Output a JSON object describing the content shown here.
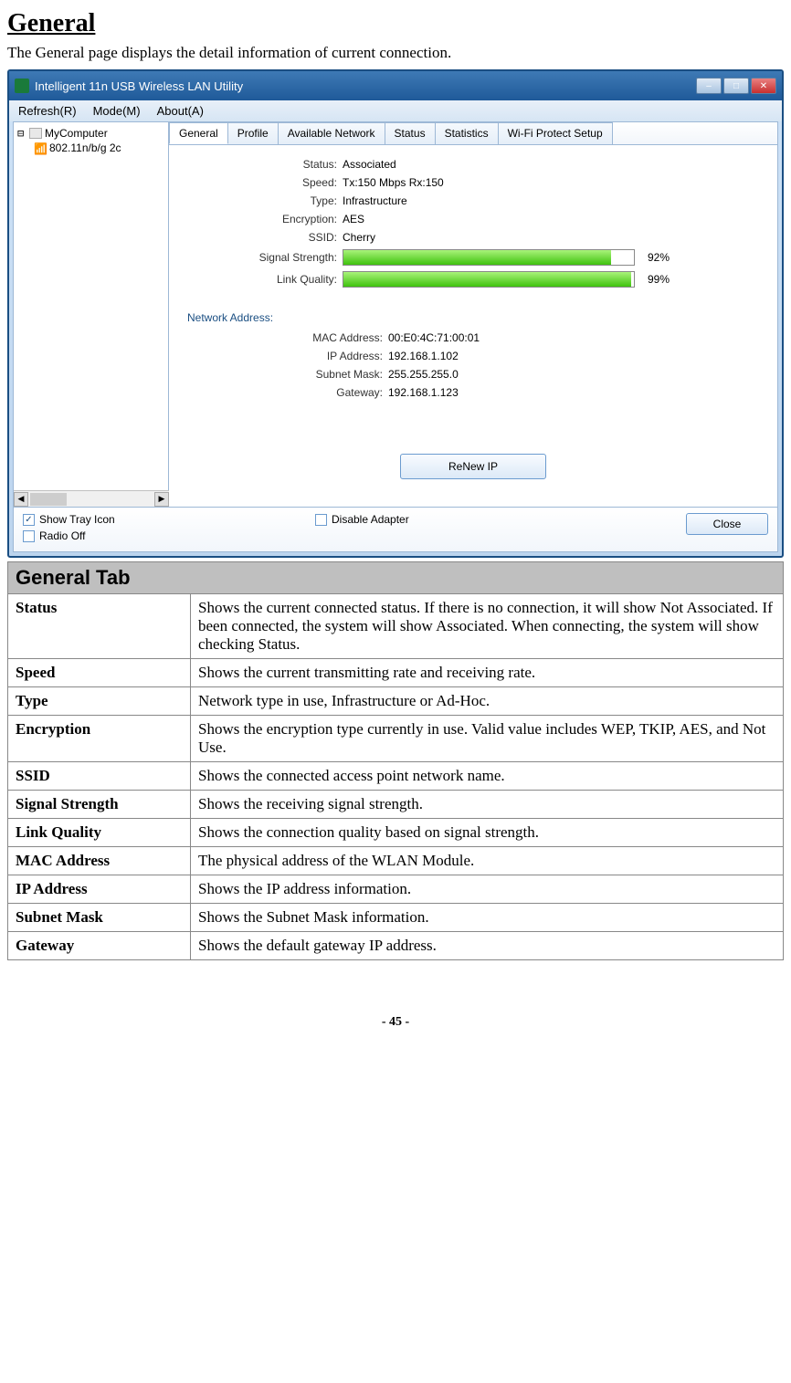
{
  "page": {
    "title": "General",
    "intro": "The General page displays the detail information of current connection.",
    "footer": "- 45 -"
  },
  "window": {
    "title": "Intelligent 11n USB Wireless LAN Utility",
    "menus": [
      "Refresh(R)",
      "Mode(M)",
      "About(A)"
    ],
    "winbtns": {
      "min": "–",
      "max": "□",
      "close": "✕"
    }
  },
  "tree": {
    "root": "MyComputer",
    "child": "802.11n/b/g 2c",
    "scroll_marker": "…"
  },
  "tabs": [
    "General",
    "Profile",
    "Available Network",
    "Status",
    "Statistics",
    "Wi-Fi Protect Setup"
  ],
  "general": {
    "status": {
      "label": "Status:",
      "value": "Associated"
    },
    "speed": {
      "label": "Speed:",
      "value": "Tx:150 Mbps Rx:150"
    },
    "type": {
      "label": "Type:",
      "value": "Infrastructure"
    },
    "encryption": {
      "label": "Encryption:",
      "value": "AES"
    },
    "ssid": {
      "label": "SSID:",
      "value": "Cherry"
    },
    "signal": {
      "label": "Signal Strength:",
      "pct": 92,
      "pct_text": "92%"
    },
    "link": {
      "label": "Link Quality:",
      "pct": 99,
      "pct_text": "99%"
    },
    "netaddr_title": "Network Address:",
    "mac": {
      "label": "MAC Address:",
      "value": "00:E0:4C:71:00:01"
    },
    "ip": {
      "label": "IP Address:",
      "value": "192.168.1.102"
    },
    "mask": {
      "label": "Subnet Mask:",
      "value": "255.255.255.0"
    },
    "gw": {
      "label": "Gateway:",
      "value": "192.168.1.123"
    },
    "renew_label": "ReNew IP"
  },
  "bottom": {
    "show_tray": {
      "label": "Show Tray Icon",
      "checked": true
    },
    "radio_off": {
      "label": "Radio Off",
      "checked": false
    },
    "disable": {
      "label": "Disable Adapter",
      "checked": false
    },
    "close_label": "Close"
  },
  "doc": {
    "header": "General Tab",
    "rows": [
      {
        "k": "Status",
        "v": "Shows the current connected status. If there is no connection, it will show Not Associated. If been connected, the system will show Associated. When connecting, the system will show checking Status."
      },
      {
        "k": "Speed",
        "v": "Shows the current transmitting rate and receiving rate."
      },
      {
        "k": "Type",
        "v": "Network type in use, Infrastructure or Ad-Hoc."
      },
      {
        "k": "Encryption",
        "v": "Shows the encryption type currently in use. Valid value includes WEP, TKIP, AES, and Not Use."
      },
      {
        "k": "SSID",
        "v": "Shows the connected access point network name."
      },
      {
        "k": "Signal Strength",
        "v": "Shows the receiving signal strength."
      },
      {
        "k": "Link Quality",
        "v": "Shows the connection quality based on signal strength."
      },
      {
        "k": "MAC Address",
        "v": "The physical address of the WLAN Module."
      },
      {
        "k": "IP Address",
        "v": "Shows the IP address information."
      },
      {
        "k": "Subnet Mask",
        "v": "Shows the Subnet Mask information."
      },
      {
        "k": "Gateway",
        "v": "Shows the default gateway IP address."
      }
    ]
  }
}
